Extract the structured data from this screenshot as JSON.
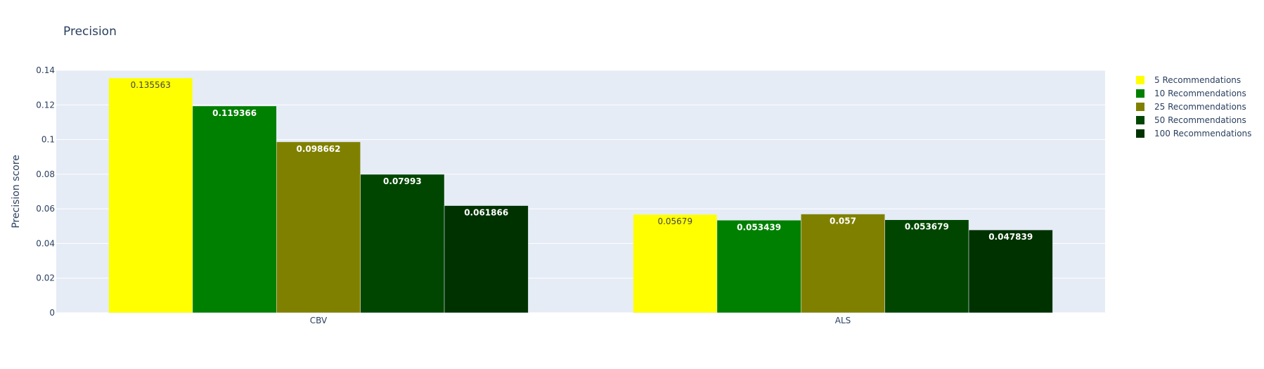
{
  "chart_data": {
    "type": "bar",
    "title": "Precision",
    "xlabel": "",
    "ylabel": "Precision score",
    "categories": [
      "CBV",
      "ALS"
    ],
    "ylim": [
      0,
      0.14
    ],
    "yticks": [
      "0",
      "0.02",
      "0.04",
      "0.06",
      "0.08",
      "0.1",
      "0.12",
      "0.14"
    ],
    "grid": true,
    "legend_position": "top-right",
    "series": [
      {
        "name": "5 Recommendations",
        "color": "#ffff00",
        "label_color": "#444444",
        "values": [
          0.135563,
          0.05679
        ],
        "labels": [
          "0.135563",
          "0.05679"
        ]
      },
      {
        "name": "10 Recommendations",
        "color": "#008000",
        "label_color": "#ffffff",
        "values": [
          0.119366,
          0.053439
        ],
        "labels": [
          "0.119366",
          "0.053439"
        ]
      },
      {
        "name": "25 Recommendations",
        "color": "#808000",
        "label_color": "#ffffff",
        "values": [
          0.098662,
          0.057
        ],
        "labels": [
          "0.098662",
          "0.057"
        ]
      },
      {
        "name": "50 Recommendations",
        "color": "#004600",
        "label_color": "#ffffff",
        "values": [
          0.07993,
          0.053679
        ],
        "labels": [
          "0.07993",
          "0.053679"
        ]
      },
      {
        "name": "100 Recommendations",
        "color": "#003200",
        "label_color": "#ffffff",
        "values": [
          0.061866,
          0.047839
        ],
        "labels": [
          "0.061866",
          "0.047839"
        ]
      }
    ]
  },
  "colors": {
    "plot_bg": "#e5ecf6",
    "grid": "#ffffff",
    "text": "#2a3f5f"
  }
}
